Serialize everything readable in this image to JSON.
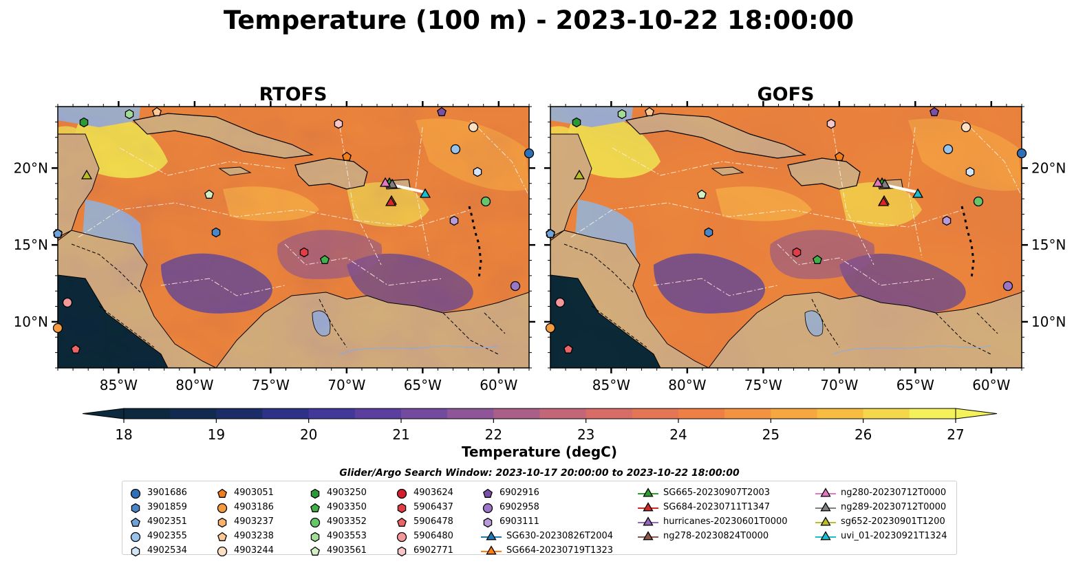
{
  "title": "Temperature (100 m) - 2023-10-22 18:00:00",
  "search_window": "Glider/Argo Search Window: 2023-10-17 20:00:00 to 2023-10-22 18:00:00",
  "colors": {
    "ocean_low": "#0b2a3e",
    "ocean_mid": "#7c4fa0",
    "ocean_high": "#f3f25a",
    "land": "#d2b48c",
    "shelf": "#9fb8e0"
  },
  "chart_data": [
    {
      "type": "heatmap",
      "panel_title": "RTOFS",
      "xlim": [
        -89,
        -58
      ],
      "ylim": [
        7,
        24
      ],
      "x_ticks": [
        "85°W",
        "80°W",
        "75°W",
        "70°W",
        "65°W",
        "60°W"
      ],
      "y_ticks": [
        "20°N",
        "15°N",
        "10°N"
      ]
    },
    {
      "type": "heatmap",
      "panel_title": "GOFS",
      "xlim": [
        -89,
        -58
      ],
      "ylim": [
        7,
        24
      ],
      "x_ticks": [
        "85°W",
        "80°W",
        "75°W",
        "70°W",
        "65°W",
        "60°W"
      ],
      "y_ticks": [
        "20°N",
        "15°N",
        "10°N"
      ]
    }
  ],
  "colorbar": {
    "label": "Temperature (degC)",
    "ticks": [
      "18",
      "19",
      "20",
      "21",
      "22",
      "23",
      "24",
      "25",
      "26",
      "27"
    ],
    "range": [
      17.5,
      27.5
    ],
    "step": 0.25
  },
  "legend": {
    "columns": [
      [
        {
          "label": "3901686",
          "marker": "circle",
          "color": "#2f6fb6"
        },
        {
          "label": "3901859",
          "marker": "hexagon",
          "color": "#4b86c6"
        },
        {
          "label": "4902351",
          "marker": "pentagon",
          "color": "#6fa3d8"
        },
        {
          "label": "4902355",
          "marker": "circle",
          "color": "#98c3ea"
        },
        {
          "label": "4902534",
          "marker": "hexagon",
          "color": "#d3e6f7"
        }
      ],
      [
        {
          "label": "4903051",
          "marker": "pentagon",
          "color": "#f07e1b"
        },
        {
          "label": "4903186",
          "marker": "circle",
          "color": "#f59a3e"
        },
        {
          "label": "4903237",
          "marker": "hexagon",
          "color": "#f8b16b"
        },
        {
          "label": "4903238",
          "marker": "pentagon",
          "color": "#fbc996"
        },
        {
          "label": "4903244",
          "marker": "circle",
          "color": "#fde0c2"
        }
      ],
      [
        {
          "label": "4903250",
          "marker": "hexagon",
          "color": "#2a9a35"
        },
        {
          "label": "4903350",
          "marker": "pentagon",
          "color": "#40b04a"
        },
        {
          "label": "4903352",
          "marker": "circle",
          "color": "#66c76a"
        },
        {
          "label": "4903553",
          "marker": "hexagon",
          "color": "#a2dd97"
        },
        {
          "label": "4903561",
          "marker": "pentagon",
          "color": "#d2f0c4"
        }
      ],
      [
        {
          "label": "4903624",
          "marker": "circle",
          "color": "#d21f2b"
        },
        {
          "label": "5906437",
          "marker": "hexagon",
          "color": "#e33c44"
        },
        {
          "label": "5906478",
          "marker": "pentagon",
          "color": "#ed6466"
        },
        {
          "label": "5906480",
          "marker": "circle",
          "color": "#f4999b"
        },
        {
          "label": "6902771",
          "marker": "hexagon",
          "color": "#f9c6c7"
        }
      ],
      [
        {
          "label": "6902916",
          "marker": "pentagon",
          "color": "#7a4fa8"
        },
        {
          "label": "6902958",
          "marker": "circle",
          "color": "#9b76c6"
        },
        {
          "label": "6903111",
          "marker": "hexagon",
          "color": "#b99ad9"
        },
        {
          "label": "SG630-20230826T2004",
          "marker": "triangle-line",
          "color": "#1f77b4"
        },
        {
          "label": "SG664-20230719T1323",
          "marker": "triangle-line",
          "color": "#ff7f0e"
        }
      ],
      [
        {
          "label": "SG665-20230907T2003",
          "marker": "triangle-line",
          "color": "#2ca02c"
        },
        {
          "label": "SG684-20230711T1347",
          "marker": "triangle-line",
          "color": "#d62728"
        },
        {
          "label": "hurricanes-20230601T0000",
          "marker": "triangle-line",
          "color": "#9467bd"
        },
        {
          "label": "ng278-20230824T0000",
          "marker": "triangle-line",
          "color": "#8c564b"
        }
      ],
      [
        {
          "label": "ng280-20230712T0000",
          "marker": "triangle-line",
          "color": "#e377c2"
        },
        {
          "label": "ng289-20230712T0000",
          "marker": "triangle-line",
          "color": "#7f7f7f"
        },
        {
          "label": "sg652-20230901T1200",
          "marker": "triangle-line",
          "color": "#bcbd22"
        },
        {
          "label": "uvi_01-20230921T1324",
          "marker": "triangle-line",
          "color": "#17becf"
        }
      ]
    ]
  }
}
